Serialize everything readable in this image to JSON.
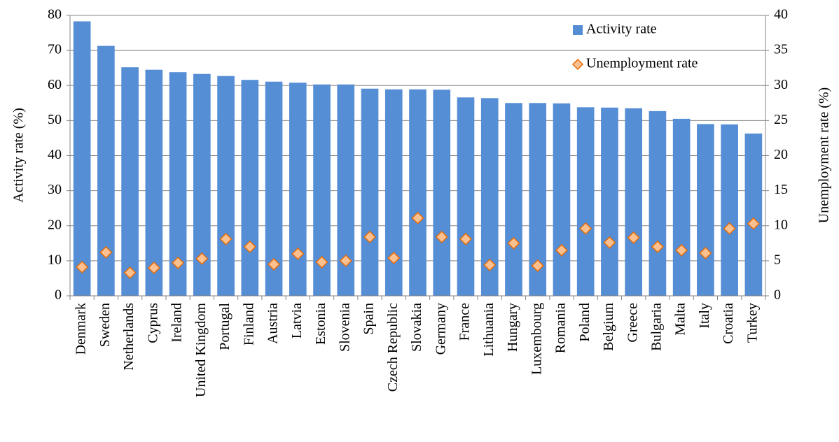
{
  "chart_data": {
    "type": "bar",
    "y_label": "Activity rate (%)",
    "y2_label": "Unemployment rate (%)",
    "categories": [
      "Denmark",
      "Sweden",
      "Netherlands",
      "Cyprus",
      "Ireland",
      "United Kingdom",
      "Portugal",
      "Finland",
      "Austria",
      "Latvia",
      "Estonia",
      "Slovenia",
      "Spain",
      "Czech Republic",
      "Slovakia",
      "Germany",
      "France",
      "Lithuania",
      "Hungary",
      "Luxembourg",
      "Romania",
      "Poland",
      "Belgium",
      "Greece",
      "Bulgaria",
      "Malta",
      "Italy",
      "Croatia",
      "Turkey"
    ],
    "series": [
      {
        "name": "Activity rate",
        "type": "bar",
        "color": "#558ed5",
        "values": [
          78.3,
          71.3,
          65.2,
          64.5,
          63.8,
          63.3,
          62.7,
          61.6,
          61.1,
          60.8,
          60.3,
          60.3,
          59.1,
          58.9,
          58.9,
          58.8,
          56.6,
          56.4,
          55.0,
          55.0,
          54.9,
          53.8,
          53.7,
          53.5,
          52.7,
          50.5,
          49.0,
          48.9,
          46.3
        ]
      },
      {
        "name": "Unemployment rate",
        "type": "scatter",
        "axis": "y2",
        "color": "#fac090",
        "edge_color": "#e46c0a",
        "values": [
          4.1,
          6.2,
          3.3,
          4.0,
          4.7,
          5.3,
          8.1,
          7.0,
          4.5,
          6.0,
          4.8,
          5.0,
          8.4,
          5.4,
          11.1,
          8.4,
          8.1,
          4.4,
          7.5,
          4.3,
          6.5,
          9.6,
          7.6,
          8.3,
          7.0,
          6.5,
          6.1,
          9.6,
          10.3
        ]
      }
    ],
    "ylim": [
      0,
      80
    ],
    "yticks": [
      0,
      10,
      20,
      30,
      40,
      50,
      60,
      70,
      80
    ],
    "y2lim": [
      0,
      40
    ],
    "y2ticks": [
      0,
      5,
      10,
      15,
      20,
      25,
      30,
      35,
      40
    ],
    "grid": true,
    "legend": "top-right"
  }
}
